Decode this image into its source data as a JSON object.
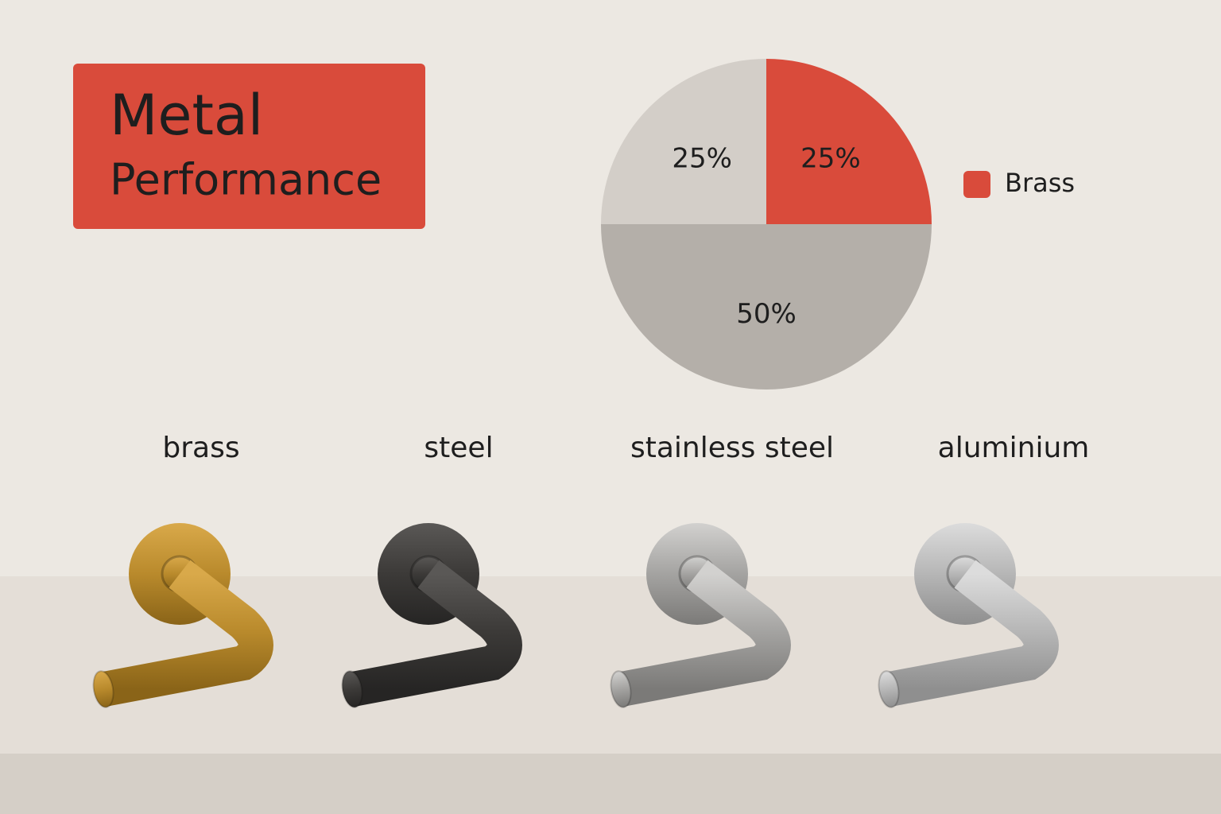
{
  "header": {
    "line1": "Metal",
    "line2": "Performance"
  },
  "chart_data": {
    "type": "pie",
    "categories": [
      "Brass",
      null,
      null
    ],
    "values": [
      25,
      50,
      25
    ],
    "value_labels": [
      "25%",
      "50%",
      "25%"
    ],
    "colors": [
      "#d94b3b",
      "#b4afa9",
      "#d3cec8"
    ]
  },
  "products": [
    "brass",
    "steel",
    "stainless steel",
    "aluminium"
  ]
}
